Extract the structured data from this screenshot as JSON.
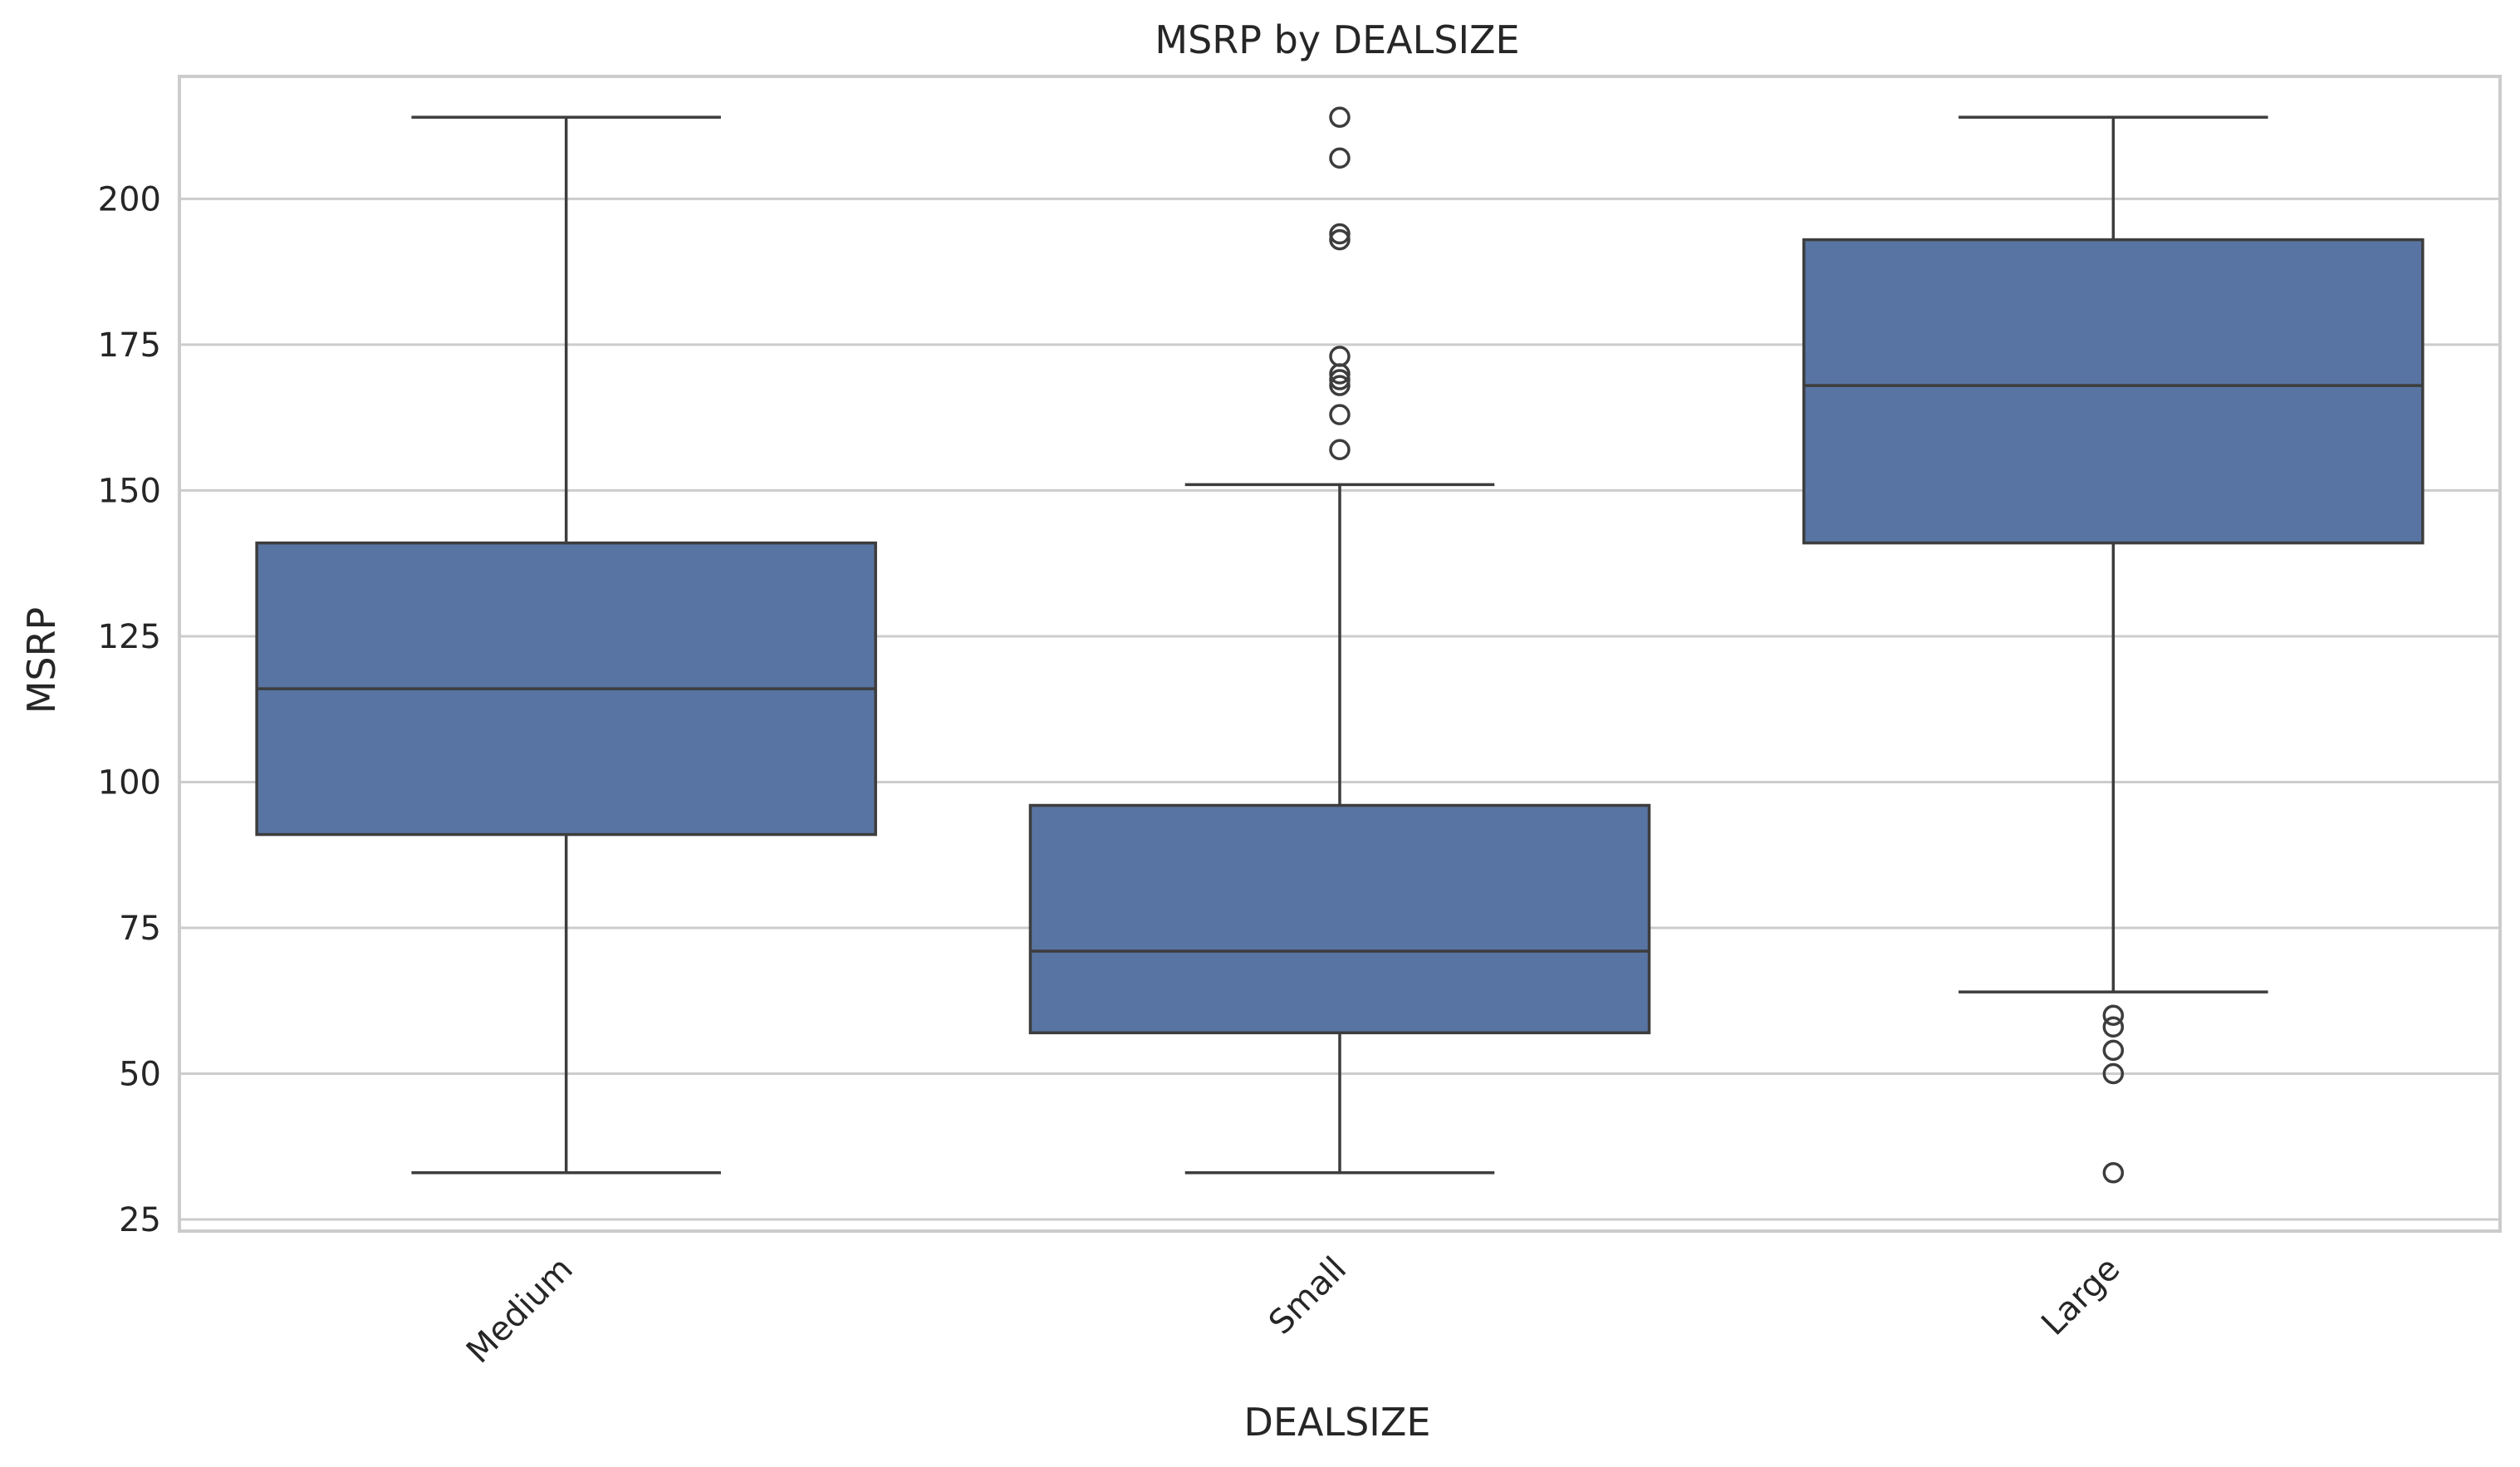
{
  "chart_data": {
    "type": "box",
    "title": "MSRP by DEALSIZE",
    "xlabel": "DEALSIZE",
    "ylabel": "MSRP",
    "ylim": [
      23,
      221
    ],
    "yticks": [
      25,
      50,
      75,
      100,
      125,
      150,
      175,
      200
    ],
    "grid": "horizontal",
    "colors": {
      "box": "#5874a2",
      "line": "#3d3d3d",
      "grid": "#cccccc",
      "frame": "#cccccc"
    },
    "categories": [
      "Medium",
      "Small",
      "Large"
    ],
    "boxes": [
      {
        "category": "Medium",
        "whisker_low": 33,
        "q1": 91,
        "median": 116,
        "q3": 141,
        "whisker_high": 214,
        "outliers": []
      },
      {
        "category": "Small",
        "whisker_low": 33,
        "q1": 57,
        "median": 71,
        "q3": 96,
        "whisker_high": 151,
        "outliers": [
          157,
          163,
          168,
          169,
          170,
          173,
          193,
          194,
          207,
          214
        ]
      },
      {
        "category": "Large",
        "whisker_low": 64,
        "q1": 141,
        "median": 168,
        "q3": 193,
        "whisker_high": 214,
        "outliers": [
          33,
          50,
          54,
          58,
          60
        ]
      }
    ]
  }
}
